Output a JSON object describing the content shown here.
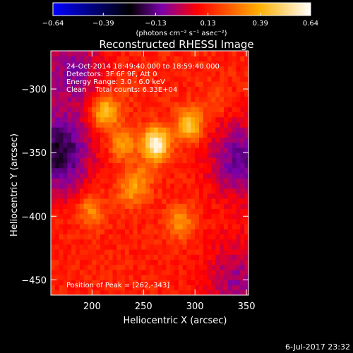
{
  "chart_data": {
    "type": "heatmap",
    "title": "Reconstructed RHESSI Image",
    "xlabel": "Heliocentric X (arcsec)",
    "ylabel": "Heliocentric Y (arcsec)",
    "xlim": [
      160,
      352
    ],
    "ylim": [
      -462,
      -270
    ],
    "x_ticks": [
      200,
      250,
      300,
      350
    ],
    "y_ticks": [
      -300,
      -350,
      -400,
      -450
    ],
    "x_tick_labels": [
      "200",
      "250",
      "300",
      "350"
    ],
    "y_tick_labels": [
      "−300",
      "−350",
      "−400",
      "−450"
    ],
    "colorbar": {
      "min": -0.64,
      "max": 0.64,
      "ticks": [
        -0.64,
        -0.39,
        -0.13,
        0.13,
        0.39,
        0.64
      ],
      "tick_labels": [
        "−0.64",
        "−0.39",
        "−0.13",
        "0.13",
        "0.39",
        "0.64"
      ],
      "units_label": "(photons cm⁻² s⁻¹ asec⁻²)",
      "colors": [
        "#0000ff",
        "#000000",
        "#7a00aa",
        "#ff0000",
        "#ffb000",
        "#ffffff"
      ]
    },
    "background_level": 0.13,
    "sources": [
      {
        "x": 262,
        "y": -343,
        "peak": 0.64
      },
      {
        "x": 213,
        "y": -318,
        "peak": 0.46
      },
      {
        "x": 295,
        "y": -328,
        "peak": 0.45
      },
      {
        "x": 230,
        "y": -343,
        "peak": 0.36
      },
      {
        "x": 286,
        "y": -405,
        "peak": 0.34
      },
      {
        "x": 199,
        "y": -395,
        "peak": 0.32
      },
      {
        "x": 237,
        "y": -380,
        "peak": 0.3
      },
      {
        "x": 248,
        "y": -370,
        "peak": 0.26
      },
      {
        "x": 320,
        "y": -310,
        "peak": 0.22
      },
      {
        "x": 230,
        "y": -300,
        "peak": 0.18
      }
    ],
    "dark_regions": [
      {
        "x": 167,
        "y": -350,
        "level": -0.22
      },
      {
        "x": 180,
        "y": -285,
        "level": -0.08
      },
      {
        "x": 345,
        "y": -355,
        "level": -0.12
      },
      {
        "x": 340,
        "y": -450,
        "level": -0.05
      }
    ],
    "annotations": [
      "24-Oct-2014 18:49:40.000 to 18:59:40.000",
      "Detectors: 3F 6F 9F, Att 0",
      "Energy Range: 3.0 - 6.0 keV",
      "Clean    Total counts: 6.33E+04"
    ],
    "peak_label": "Position of Peak = [262,-343]",
    "footer_date": "6-Jul-2017 23:32"
  }
}
